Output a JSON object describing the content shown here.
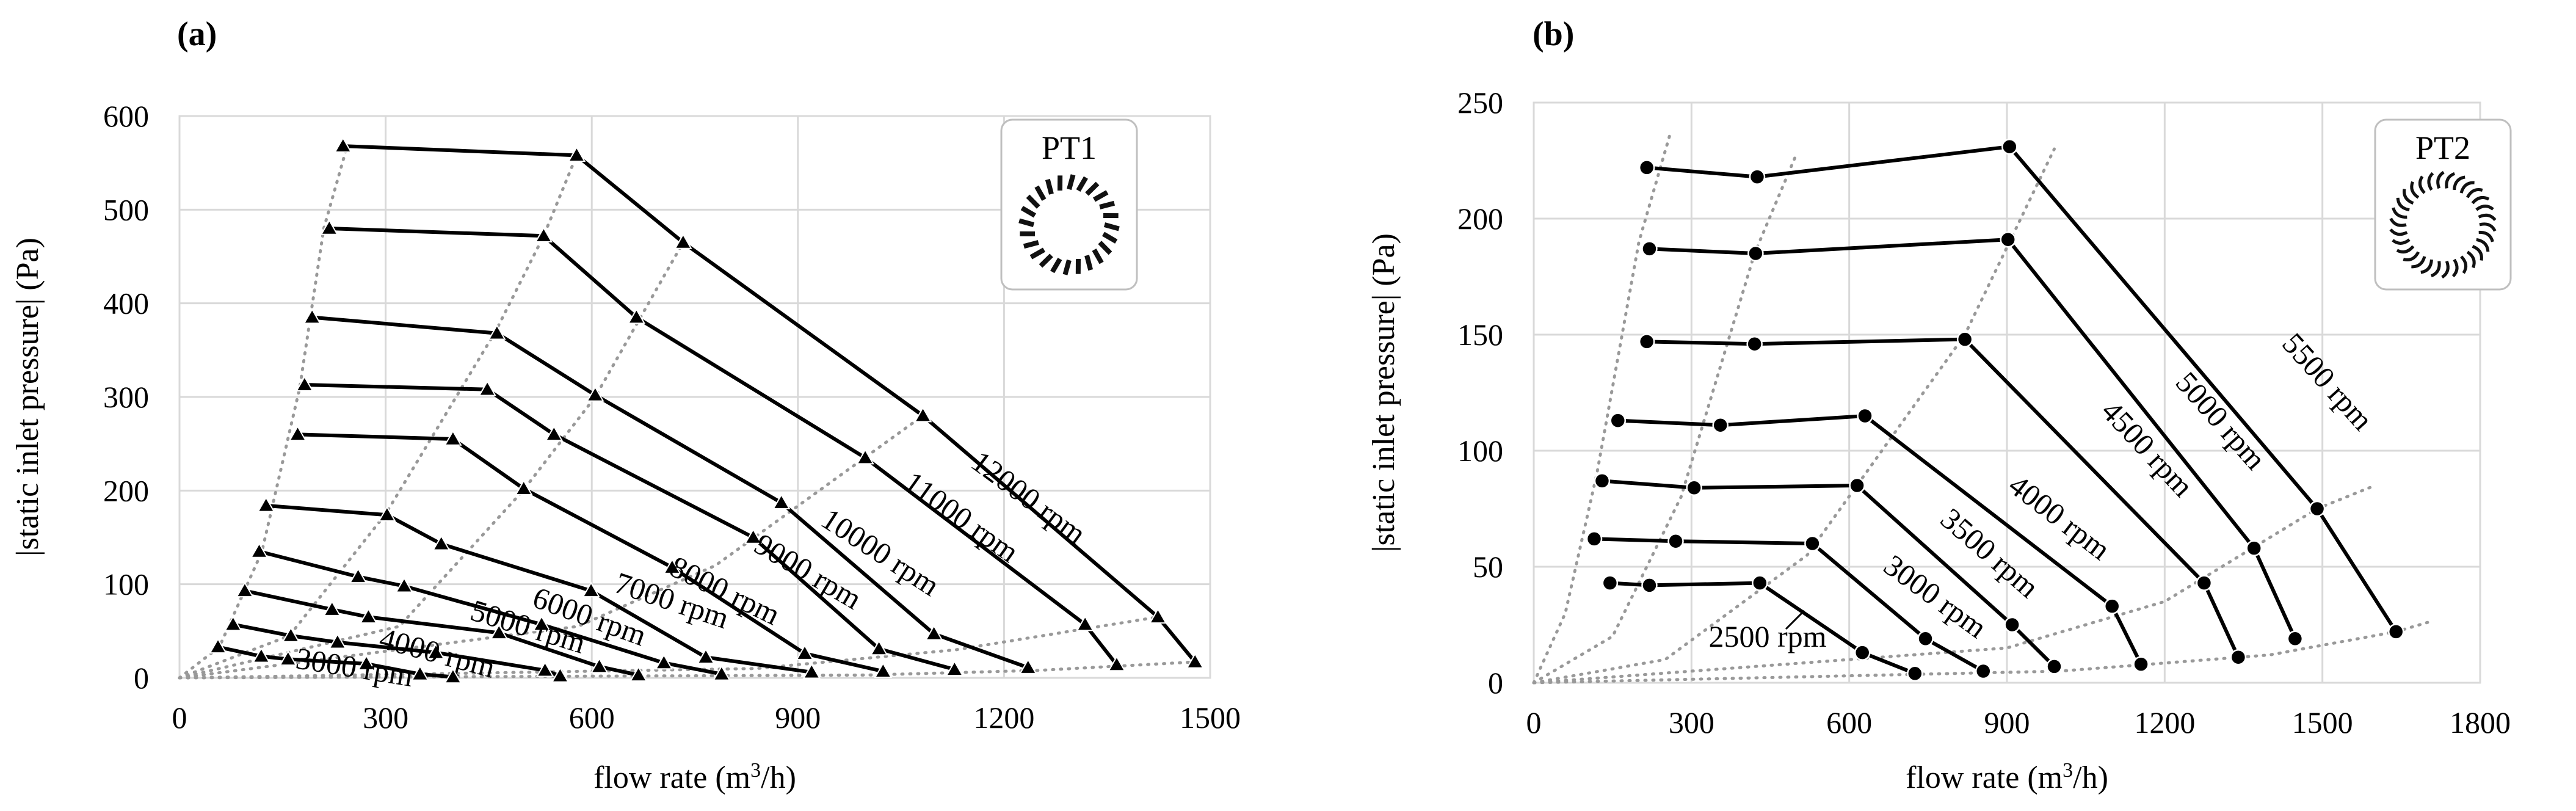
{
  "chart_data": [
    {
      "type": "line",
      "panel_label": "(a)",
      "title": "",
      "xlabel": "flow rate (m³/h)",
      "ylabel": "|static inlet pressure| (Pa)",
      "xlim": [
        0,
        1500
      ],
      "ylim": [
        0,
        600
      ],
      "xticks": [
        "0",
        "300",
        "600",
        "900",
        "1200",
        "1500"
      ],
      "yticks": [
        "0",
        "100",
        "200",
        "300",
        "400",
        "500",
        "600"
      ],
      "grid": true,
      "marker": "triangle",
      "legend": {
        "label": "PT1",
        "placement": "top-right",
        "icon": "radial-blades-icon"
      },
      "series": [
        {
          "name": "12000 rpm",
          "label": "12000 rpm",
          "x": [
            238,
            578,
            733,
            1082,
            1424,
            1478
          ],
          "y": [
            568,
            558,
            465,
            280,
            65,
            17
          ]
        },
        {
          "name": "11000 rpm",
          "label": "11000 rpm",
          "x": [
            218,
            530,
            665,
            998,
            1318,
            1364
          ],
          "y": [
            480,
            472,
            385,
            235,
            57,
            14
          ]
        },
        {
          "name": "10000 rpm",
          "label": "10000 rpm",
          "x": [
            193,
            462,
            605,
            876,
            1098,
            1235
          ],
          "y": [
            385,
            368,
            302,
            187,
            47,
            11
          ]
        },
        {
          "name": "9000 rpm",
          "label": "9000 rpm",
          "x": [
            182,
            448,
            545,
            835,
            1018,
            1128
          ],
          "y": [
            313,
            308,
            260,
            150,
            31,
            9
          ]
        },
        {
          "name": "8000 rpm",
          "label": "8000 rpm",
          "x": [
            172,
            398,
            501,
            717,
            910,
            1024
          ],
          "y": [
            260,
            255,
            202,
            118,
            26,
            7
          ]
        },
        {
          "name": "7000 rpm",
          "label": "7000 rpm",
          "x": [
            126,
            302,
            381,
            599,
            766,
            920
          ],
          "y": [
            184,
            174,
            143,
            93,
            22,
            6
          ]
        },
        {
          "name": "6000 rpm",
          "label": "6000 rpm",
          "x": [
            116,
            260,
            327,
            527,
            705,
            789
          ],
          "y": [
            135,
            108,
            98,
            57,
            16,
            4
          ]
        },
        {
          "name": "5000 rpm",
          "label": "5000 rpm",
          "x": [
            95,
            222,
            275,
            465,
            611,
            668
          ],
          "y": [
            93,
            73,
            65,
            48,
            12,
            3
          ]
        },
        {
          "name": "4000 rpm",
          "label": "4000 rpm",
          "x": [
            78,
            162,
            230,
            373,
            532,
            554
          ],
          "y": [
            57,
            45,
            38,
            27,
            8,
            2
          ]
        },
        {
          "name": "3000 rpm",
          "label": "3000 rpm",
          "x": [
            56,
            119,
            158,
            272,
            350,
            398
          ],
          "y": [
            33,
            23,
            20,
            15,
            4,
            1
          ]
        }
      ],
      "guide_lines": [
        {
          "x": [
            0,
            58,
            120,
            175,
            210,
            244
          ],
          "y": [
            0,
            33,
            135,
            310,
            480,
            568
          ]
        },
        {
          "x": [
            0,
            160,
            300,
            460,
            530,
            578
          ],
          "y": [
            0,
            45,
            175,
            370,
            472,
            558
          ]
        },
        {
          "x": [
            0,
            320,
            500,
            605,
            733
          ],
          "y": [
            0,
            55,
            200,
            300,
            465
          ]
        },
        {
          "x": [
            0,
            580,
            780,
            1082
          ],
          "y": [
            0,
            55,
            120,
            280
          ]
        },
        {
          "x": [
            0,
            840,
            1130,
            1424
          ],
          "y": [
            0,
            10,
            30,
            65
          ]
        },
        {
          "x": [
            0,
            1000,
            1250,
            1478
          ],
          "y": [
            0,
            3,
            8,
            17
          ]
        }
      ]
    },
    {
      "type": "line",
      "panel_label": "(b)",
      "title": "",
      "xlabel": "flow rate (m³/h)",
      "ylabel": "|static inlet pressure| (Pa)",
      "xlim": [
        0,
        1800
      ],
      "ylim": [
        0,
        250
      ],
      "xticks": [
        "0",
        "300",
        "600",
        "900",
        "1200",
        "1500",
        "1800"
      ],
      "yticks": [
        "0",
        "50",
        "100",
        "150",
        "200",
        "250"
      ],
      "grid": true,
      "marker": "circle",
      "legend": {
        "label": "PT2",
        "placement": "top-right",
        "icon": "curved-blades-icon"
      },
      "series": [
        {
          "name": "5500 rpm",
          "label": "5500 rpm",
          "x": [
            215,
            425,
            905,
            1490,
            1640
          ],
          "y": [
            222,
            218,
            231,
            75,
            22
          ]
        },
        {
          "name": "5000 rpm",
          "label": "5000 rpm",
          "x": [
            220,
            422,
            902,
            1370,
            1448
          ],
          "y": [
            187,
            185,
            191,
            58,
            19
          ]
        },
        {
          "name": "4500 rpm",
          "label": "4500 rpm",
          "x": [
            215,
            420,
            820,
            1275,
            1340
          ],
          "y": [
            147,
            146,
            148,
            43,
            11
          ]
        },
        {
          "name": "4000 rpm",
          "label": "4000 rpm",
          "x": [
            160,
            355,
            630,
            1100,
            1155
          ],
          "y": [
            113,
            111,
            115,
            33,
            8
          ]
        },
        {
          "name": "3500 rpm",
          "label": "3500 rpm",
          "x": [
            130,
            305,
            615,
            910,
            990
          ],
          "y": [
            87,
            84,
            85,
            25,
            7
          ]
        },
        {
          "name": "3000 rpm",
          "label": "3000 rpm",
          "x": [
            115,
            270,
            530,
            745,
            855
          ],
          "y": [
            62,
            61,
            60,
            19,
            5
          ]
        },
        {
          "name": "2500 rpm",
          "label": "2500 rpm",
          "x": [
            145,
            220,
            430,
            625,
            725
          ],
          "y": [
            43,
            42,
            43,
            13,
            4
          ]
        }
      ],
      "guide_lines": [
        {
          "x": [
            0,
            60,
            120,
            200,
            260
          ],
          "y": [
            0,
            30,
            90,
            190,
            237
          ]
        },
        {
          "x": [
            0,
            150,
            280,
            420,
            500
          ],
          "y": [
            0,
            20,
            80,
            185,
            228
          ]
        },
        {
          "x": [
            0,
            250,
            520,
            820,
            990
          ],
          "y": [
            0,
            10,
            55,
            150,
            230
          ]
        },
        {
          "x": [
            0,
            900,
            1200,
            1490,
            1600
          ],
          "y": [
            0,
            15,
            35,
            75,
            85
          ]
        },
        {
          "x": [
            0,
            1000,
            1400,
            1640,
            1700
          ],
          "y": [
            0,
            5,
            12,
            22,
            26
          ]
        }
      ]
    }
  ]
}
